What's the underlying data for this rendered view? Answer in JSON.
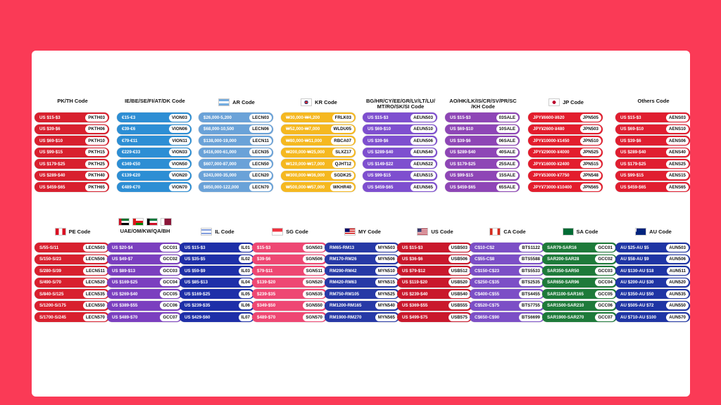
{
  "row1": [
    {
      "id": "pk-th",
      "title": "PK/TH Code",
      "flags": [],
      "color": "#d8202e",
      "rows": [
        [
          "US $15-$3",
          "PKTH03"
        ],
        [
          "US $39-$6",
          "PKTH06"
        ],
        [
          "US $69-$10",
          "PKTH10"
        ],
        [
          "US $99-$15",
          "PKTH15"
        ],
        [
          "US $179-$25",
          "PKTH25"
        ],
        [
          "US $289-$40",
          "PKTH40"
        ],
        [
          "US $459-$65",
          "PKTH65"
        ]
      ]
    },
    {
      "id": "ie",
      "title": "IE/BE/SE/FI/AT/DK Code",
      "flags": [],
      "color": "#2d8ed4",
      "rows": [
        [
          "€15-€3",
          "VION03"
        ],
        [
          "€39-€6",
          "VION06"
        ],
        [
          "€79-€11",
          "VION11"
        ],
        [
          "€229-€33",
          "VION33"
        ],
        [
          "€349-€50",
          "VION50"
        ],
        [
          "€139-€20",
          "VION20"
        ],
        [
          "€489-€70",
          "VION70"
        ]
      ]
    },
    {
      "id": "ar",
      "title": "AR Code",
      "flags": [
        "flag-ar"
      ],
      "color": "#6aa2d8",
      "rows": [
        [
          "$26,000-5,200",
          "LECN03"
        ],
        [
          "$68,000-10,500",
          "LECN06"
        ],
        [
          "$138,000-19,000",
          "LECN11"
        ],
        [
          "$416,000-61,000",
          "LECN35"
        ],
        [
          "$607,000-87,000",
          "LECN50"
        ],
        [
          "$243,000-35,000",
          "LECN20"
        ],
        [
          "$850,000-122,000",
          "LECN70"
        ]
      ]
    },
    {
      "id": "kr",
      "title": "KR Code",
      "flags": [
        "flag-kr"
      ],
      "color": "#f5b820",
      "rows": [
        [
          "₩30,000-₩4,200",
          "FRLK03"
        ],
        [
          "₩52,000-₩7,000",
          "WLDU05"
        ],
        [
          "₩80,000-₩11,000",
          "RBCA07"
        ],
        [
          "₩200,000-₩25,000",
          "SLXZ17"
        ],
        [
          "₩120,000-₩17,000",
          "QJHT12"
        ],
        [
          "₩300,000-₩36,000",
          "SGDK25"
        ],
        [
          "₩500,000-₩57,000",
          "WKHR40"
        ]
      ]
    },
    {
      "id": "bg",
      "title": "BG/HR/CY/EE/GR/LV/LT/LU/\nMT/RO/SK/SI Code",
      "flags": [],
      "color": "#7e4fcf",
      "rows": [
        [
          "US $15-$3",
          "AEUN503"
        ],
        [
          "US $69-$10",
          "AEUN510"
        ],
        [
          "US $39-$6",
          "AEUN506"
        ],
        [
          "US $289-$40",
          "AEUN540"
        ],
        [
          "US $149-$22",
          "AEUN522"
        ],
        [
          "US $99-$15",
          "AEUN515"
        ],
        [
          "US $459-$65",
          "AEUN565"
        ]
      ]
    },
    {
      "id": "ao",
      "title": "AO/HK/LK/IS/CR/SV/PR/SC\n/KH Code",
      "flags": [],
      "color": "#8e46b6",
      "rows": [
        [
          "US $15-$3",
          "03SALE"
        ],
        [
          "US $69-$10",
          "10SALE"
        ],
        [
          "US $39-$6",
          "06SALE"
        ],
        [
          "US $289-$40",
          "40SALE"
        ],
        [
          "US $179-$25",
          "25SALE"
        ],
        [
          "US $99-$15",
          "15SALE"
        ],
        [
          "US $459-$65",
          "65SALE"
        ]
      ]
    },
    {
      "id": "jp",
      "title": "JP Code",
      "flags": [
        "flag-jp"
      ],
      "color": "#e31d2d",
      "rows": [
        [
          "JPY¥6600-¥620",
          "JPN505"
        ],
        [
          "JPY¥2600-¥480",
          "JPN503"
        ],
        [
          "JPY¥10000-¥1450",
          "JPN510"
        ],
        [
          "JPY¥29000-¥4000",
          "JPN525"
        ],
        [
          "JPY¥16000-¥2400",
          "JPN515"
        ],
        [
          "JPY¥53000-¥7750",
          "JPN548"
        ],
        [
          "JPY¥73000-¥10400",
          "JPN565"
        ]
      ]
    },
    {
      "id": "others",
      "title": "Others Code",
      "flags": [],
      "color": "#e01e30",
      "rows": [
        [
          "US $15-$3",
          "AENS03"
        ],
        [
          "US $69-$10",
          "AENS10"
        ],
        [
          "US $39-$6",
          "AENS06"
        ],
        [
          "US $289-$40",
          "AENS40"
        ],
        [
          "US $179-$25",
          "AENS25"
        ],
        [
          "US $99-$15",
          "AENS15"
        ],
        [
          "US $459-$65",
          "AENS65"
        ]
      ]
    }
  ],
  "row2": [
    {
      "id": "pe",
      "title": "PE Code",
      "flags": [
        "flag-pe"
      ],
      "color": "#d8202e",
      "rows": [
        [
          "S/55-S/11",
          "LECN503"
        ],
        [
          "S/150-S/23",
          "LECN506"
        ],
        [
          "S/280-S/39",
          "LECN511"
        ],
        [
          "S/490-S/70",
          "LECN520"
        ],
        [
          "S/840-S/125",
          "LECN535"
        ],
        [
          "S/1200-S/175",
          "LECN550"
        ],
        [
          "S/1700-S/245",
          "LECN570"
        ]
      ]
    },
    {
      "id": "uae",
      "title": "UAE/OM/KW/QA/BH",
      "flags": [
        "flag-ae",
        "flag-om",
        "flag-kw",
        "flag-qa"
      ],
      "color": "#7b3fbf",
      "rows": [
        [
          "US $20-$4",
          "GCC01"
        ],
        [
          "US $49-$7",
          "GCC02"
        ],
        [
          "US $89-$13",
          "GCC03"
        ],
        [
          "US $169-$25",
          "GCC04"
        ],
        [
          "US $269-$40",
          "GCC05"
        ],
        [
          "US $389-$55",
          "GCC06"
        ],
        [
          "US $489-$70",
          "GCC07"
        ]
      ]
    },
    {
      "id": "il",
      "title": "IL Code",
      "flags": [
        "flag-il"
      ],
      "color": "#1e2fa8",
      "rows": [
        [
          "US $15-$3",
          "IL01"
        ],
        [
          "US $35-$5",
          "IL02"
        ],
        [
          "US $59-$9",
          "IL03"
        ],
        [
          "US $85-$13",
          "IL04"
        ],
        [
          "US $169-$25",
          "IL05"
        ],
        [
          "US $239-$35",
          "IL06"
        ],
        [
          "US $429-$60",
          "IL07"
        ]
      ]
    },
    {
      "id": "sg",
      "title": "SG Code",
      "flags": [
        "flag-sg"
      ],
      "color": "#ee4773",
      "rows": [
        [
          "$15-$3",
          "SGN503"
        ],
        [
          "$39-$6",
          "SGN506"
        ],
        [
          "$79-$11",
          "SGN511"
        ],
        [
          "$139-$20",
          "SGN520"
        ],
        [
          "$239-$35",
          "SGN535"
        ],
        [
          "$349-$50",
          "SGN550"
        ],
        [
          "$489-$70",
          "SGN570"
        ]
      ]
    },
    {
      "id": "my",
      "title": "MY Code",
      "flags": [
        "flag-my"
      ],
      "color": "#2739a6",
      "rows": [
        [
          "RM65-RM13",
          "MYN503"
        ],
        [
          "RM170-RM26",
          "MYN506"
        ],
        [
          "RM290-RM42",
          "MYN510"
        ],
        [
          "RM420-RM63",
          "MYN515"
        ],
        [
          "RM750-RM105",
          "MYN525"
        ],
        [
          "RM1200-RM165",
          "MYN540"
        ],
        [
          "RM1900-RM270",
          "MYN565"
        ]
      ]
    },
    {
      "id": "us",
      "title": "US Code",
      "flags": [
        "flag-us"
      ],
      "color": "#c9182c",
      "rows": [
        [
          "US $15-$3",
          "USB503"
        ],
        [
          "US $36-$6",
          "USB506"
        ],
        [
          "US $79-$12",
          "USB512"
        ],
        [
          "US $119-$20",
          "USB520"
        ],
        [
          "US $239-$40",
          "USB540"
        ],
        [
          "US $369-$55",
          "USB555"
        ],
        [
          "US $499-$75",
          "USB575"
        ]
      ]
    },
    {
      "id": "ca",
      "title": "CA Code",
      "flags": [
        "flag-ca"
      ],
      "color": "#7c4fc6",
      "rows": [
        [
          "C$10-C$2",
          "BTS1122"
        ],
        [
          "C$55-C$8",
          "BTS5588"
        ],
        [
          "C$150-C$23",
          "BTS5533"
        ],
        [
          "C$250-C$35",
          "BTS2535"
        ],
        [
          "C$400-C$55",
          "BTS4455"
        ],
        [
          "C$520-C$75",
          "BTS7755"
        ],
        [
          "C$650-C$90",
          "BTS6699"
        ]
      ]
    },
    {
      "id": "sa",
      "title": "SA Code",
      "flags": [
        "flag-sa"
      ],
      "color": "#1e7a3a",
      "rows": [
        [
          "SAR79-SAR16",
          "GCC01"
        ],
        [
          "SAR200-SAR28",
          "GCC02"
        ],
        [
          "SAR350-SAR50",
          "GCC03"
        ],
        [
          "SAR650-SAR96",
          "GCC04"
        ],
        [
          "SAR1100-SAR165",
          "GCC05"
        ],
        [
          "SAR1500-SAR210",
          "GCC06"
        ],
        [
          "SAR1900-SAR270",
          "GCC07"
        ]
      ]
    },
    {
      "id": "au",
      "title": "AU Code",
      "flags": [
        "flag-au"
      ],
      "color": "#1f35a4",
      "rows": [
        [
          "AU $25-AU $5",
          "AUN503"
        ],
        [
          "AU $58-AU $9",
          "AUN506"
        ],
        [
          "AU $130-AU $18",
          "AUN511"
        ],
        [
          "AU $200-AU $30",
          "AUN520"
        ],
        [
          "AU $350-AU $50",
          "AUN535"
        ],
        [
          "AU $505-AU $72",
          "AUN550"
        ],
        [
          "AU $710-AU $100",
          "AUN570"
        ]
      ]
    }
  ]
}
